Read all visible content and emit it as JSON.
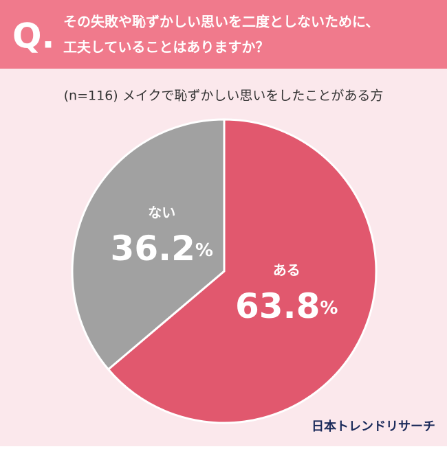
{
  "chart_data": {
    "type": "pie",
    "question_mark": "Q.",
    "title_lines": [
      "その失敗や恥ずかしい思いを二度としないために、",
      "工夫していることはありますか？"
    ],
    "subtitle": "(n=116) メイクで恥ずかしい思いをしたことがある方",
    "categories": [
      "ある",
      "ない"
    ],
    "values": [
      63.8,
      36.2
    ],
    "value_labels": [
      "63.8%",
      "36.2%"
    ],
    "colors": [
      "#e1586e",
      "#a1a1a1"
    ],
    "brand": "日本トレンドリサーチ"
  }
}
